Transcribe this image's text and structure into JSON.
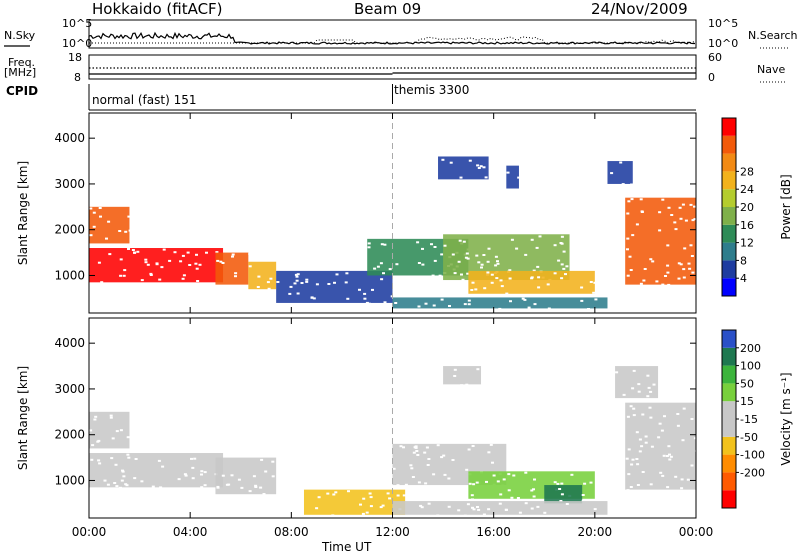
{
  "header": {
    "station": "Hokkaido (fitACF)",
    "beam": "Beam 09",
    "date": "24/Nov/2009"
  },
  "top_panels": {
    "nsky_label": "N.Sky",
    "nsearch_label": "N.Search",
    "freq_label_1": "Freq.",
    "freq_label_2": "[MHz]",
    "nave_label": "Nave",
    "cpid_label": "CPID",
    "noise_ticks_left": [
      "10^5",
      "10^0"
    ],
    "noise_ticks_right": [
      "10^5",
      "10^0"
    ],
    "freq_ticks": [
      "18",
      "8"
    ],
    "nave_ticks": [
      "60",
      "0"
    ],
    "cpid_segments": [
      {
        "label": "normal (fast) 151",
        "start_hour": 0,
        "end_hour": 12
      },
      {
        "label": "themis 3300",
        "start_hour": 12,
        "end_hour": 24
      }
    ]
  },
  "colors": {
    "power": [
      "#0000ff",
      "#1e3ca0",
      "#2e7d8c",
      "#2e8b57",
      "#7fb04a",
      "#b4cc2e",
      "#f2b21c",
      "#f28a14",
      "#f25a0a",
      "#ff0000"
    ],
    "velocity": [
      "#ff0000",
      "#ff5a00",
      "#ff8c00",
      "#f2c21c",
      "#c8c8c8",
      "#c8c8c8",
      "#78d03c",
      "#3cb43c",
      "#1e7850",
      "#2a50c8"
    ]
  },
  "chart_data": [
    {
      "type": "heatmap",
      "title": "Power",
      "ylabel": "Slant Range [km]",
      "xlabel": "",
      "xlim": [
        0,
        24
      ],
      "ylim": [
        180,
        4550
      ],
      "yticks": [
        "1000",
        "2000",
        "3000",
        "4000"
      ],
      "xticks": [
        "00:00",
        "04:00",
        "08:00",
        "12:00",
        "16:00",
        "20:00",
        "00:00"
      ],
      "colorbar": {
        "label": "Power [dB]",
        "range": [
          0,
          32
        ],
        "ticks": [
          "4",
          "8",
          "12",
          "16",
          "20",
          "24",
          "28"
        ]
      },
      "regions": [
        {
          "t0": 0.0,
          "t1": 5.3,
          "r0": 850,
          "r1": 1600,
          "v": 30
        },
        {
          "t0": 0.0,
          "t1": 1.6,
          "r0": 1700,
          "r1": 2500,
          "v": 27
        },
        {
          "t0": 5.0,
          "t1": 6.3,
          "r0": 800,
          "r1": 1500,
          "v": 28
        },
        {
          "t0": 6.3,
          "t1": 7.4,
          "r0": 700,
          "r1": 1300,
          "v": 20
        },
        {
          "t0": 7.4,
          "t1": 12.0,
          "r0": 400,
          "r1": 1100,
          "v": 6
        },
        {
          "t0": 11.0,
          "t1": 15.0,
          "r0": 1000,
          "r1": 1800,
          "v": 10
        },
        {
          "t0": 14.0,
          "t1": 19.0,
          "r0": 900,
          "r1": 1900,
          "v": 14
        },
        {
          "t0": 15.0,
          "t1": 20.0,
          "r0": 600,
          "r1": 1100,
          "v": 22
        },
        {
          "t0": 12.0,
          "t1": 20.5,
          "r0": 280,
          "r1": 520,
          "v": 8
        },
        {
          "t0": 13.8,
          "t1": 15.8,
          "r0": 3100,
          "r1": 3600,
          "v": 6
        },
        {
          "t0": 16.5,
          "t1": 17.0,
          "r0": 2900,
          "r1": 3400,
          "v": 6
        },
        {
          "t0": 21.2,
          "t1": 24.0,
          "r0": 800,
          "r1": 2700,
          "v": 27
        },
        {
          "t0": 20.5,
          "t1": 21.5,
          "r0": 3000,
          "r1": 3500,
          "v": 6
        }
      ]
    },
    {
      "type": "heatmap",
      "title": "Velocity",
      "ylabel": "Slant Range [km]",
      "xlabel": "Time UT",
      "xlim": [
        0,
        24
      ],
      "ylim": [
        180,
        4550
      ],
      "yticks": [
        "1000",
        "2000",
        "3000",
        "4000"
      ],
      "xticks": [
        "00:00",
        "04:00",
        "08:00",
        "12:00",
        "16:00",
        "20:00",
        "00:00"
      ],
      "colorbar": {
        "label": "Velocity [m s⁻¹]",
        "range": [
          -250,
          250
        ],
        "ticks": [
          "200",
          "100",
          "50",
          "15",
          "-15",
          "-50",
          "-100",
          "-200"
        ]
      },
      "regions": [
        {
          "t0": 0.0,
          "t1": 5.3,
          "r0": 850,
          "r1": 1600,
          "v": 0
        },
        {
          "t0": 0.0,
          "t1": 1.6,
          "r0": 1700,
          "r1": 2500,
          "v": 0
        },
        {
          "t0": 5.0,
          "t1": 7.4,
          "r0": 700,
          "r1": 1500,
          "v": 0
        },
        {
          "t0": 8.5,
          "t1": 12.5,
          "r0": 250,
          "r1": 800,
          "v": -60
        },
        {
          "t0": 12.0,
          "t1": 16.5,
          "r0": 900,
          "r1": 1800,
          "v": 40
        },
        {
          "t0": 15.0,
          "t1": 20.0,
          "r0": 600,
          "r1": 1200,
          "v": 80
        },
        {
          "t0": 18.0,
          "t1": 19.5,
          "r0": 500,
          "r1": 900,
          "v": 180
        },
        {
          "t0": 12.0,
          "t1": 20.5,
          "r0": 250,
          "r1": 550,
          "v": -40
        },
        {
          "t0": 14.0,
          "t1": 15.5,
          "r0": 3100,
          "r1": 3500,
          "v": 0
        },
        {
          "t0": 21.2,
          "t1": 24.0,
          "r0": 800,
          "r1": 2700,
          "v": 0
        },
        {
          "t0": 20.8,
          "t1": 22.5,
          "r0": 2800,
          "r1": 3500,
          "v": 40
        }
      ]
    }
  ]
}
